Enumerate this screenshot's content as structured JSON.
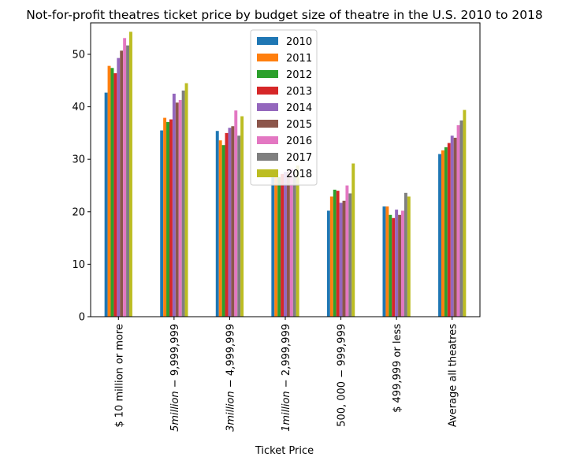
{
  "chart_data": {
    "type": "bar",
    "title": "Not-for-profit theatres ticket price by budget size of theatre in the U.S. 2010 to 2018",
    "xlabel": "Ticket Price",
    "ylabel": "",
    "ylim": [
      0,
      56
    ],
    "yticks": [
      0,
      10,
      20,
      30,
      40,
      50
    ],
    "grid": false,
    "legend_position": "top-center",
    "categories": [
      "$ 10 million or more",
      "$5 million − $9,999,999",
      "$3 million − $4,999,999",
      "$1 million − $2,999,999",
      "$500,000 − $999,999",
      "$ 499,999 or less",
      "Average all theatres"
    ],
    "category_labels": [
      [
        "$ 10 million or more"
      ],
      [
        "5",
        "million",
        " − 9,999,999"
      ],
      [
        "3",
        "million",
        " − 4,999,999"
      ],
      [
        "1",
        "million",
        " − 2,999,999"
      ],
      [
        "500, 000 − 999,999"
      ],
      [
        "$ 499,999 or less"
      ],
      [
        "Average all theatres"
      ]
    ],
    "series": [
      {
        "name": "2010",
        "color": "#1f77b4",
        "values": [
          42.7,
          35.5,
          35.4,
          26.7,
          20.2,
          21.0,
          31.0
        ]
      },
      {
        "name": "2011",
        "color": "#ff7f0e",
        "values": [
          47.8,
          37.9,
          33.6,
          26.9,
          22.9,
          21.0,
          31.7
        ]
      },
      {
        "name": "2012",
        "color": "#2ca02c",
        "values": [
          47.4,
          37.1,
          32.7,
          26.6,
          24.2,
          19.4,
          32.3
        ]
      },
      {
        "name": "2013",
        "color": "#d62728",
        "values": [
          46.4,
          37.6,
          35.0,
          27.2,
          24.0,
          18.8,
          33.1
        ]
      },
      {
        "name": "2014",
        "color": "#9467bd",
        "values": [
          49.3,
          42.5,
          36.0,
          27.6,
          21.7,
          20.4,
          34.5
        ]
      },
      {
        "name": "2015",
        "color": "#8c564b",
        "values": [
          50.7,
          40.8,
          36.3,
          27.7,
          22.1,
          19.4,
          34.1
        ]
      },
      {
        "name": "2016",
        "color": "#e377c2",
        "values": [
          53.1,
          41.3,
          39.3,
          28.2,
          25.0,
          20.2,
          36.5
        ]
      },
      {
        "name": "2017",
        "color": "#7f7f7f",
        "values": [
          51.7,
          43.1,
          34.5,
          26.9,
          23.5,
          23.6,
          37.4
        ]
      },
      {
        "name": "2018",
        "color": "#bcbd22",
        "values": [
          54.3,
          44.5,
          38.2,
          28.8,
          29.2,
          22.9,
          39.4
        ]
      }
    ]
  }
}
